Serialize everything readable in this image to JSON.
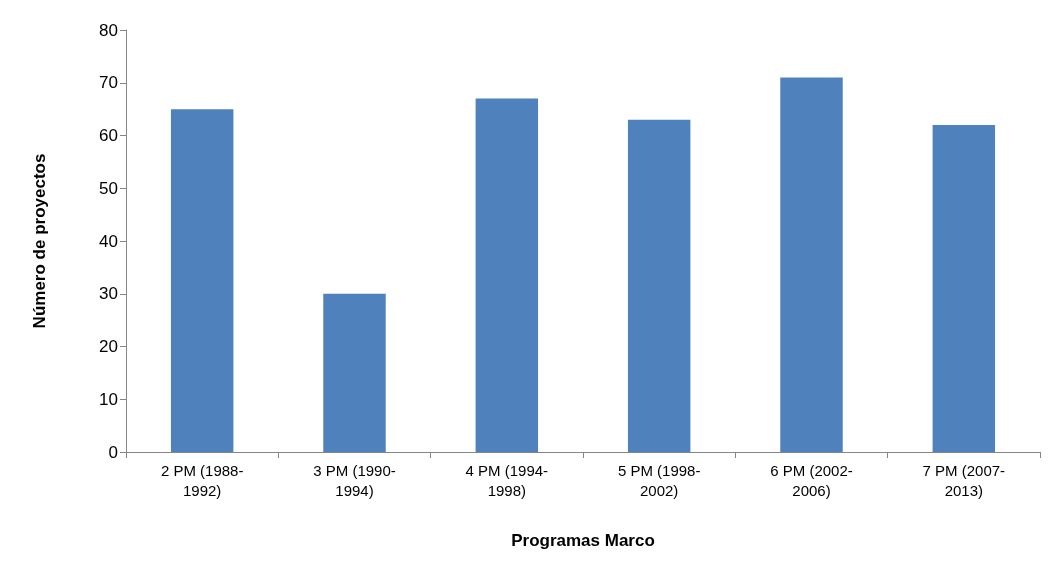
{
  "chart_data": {
    "type": "bar",
    "xlabel": "Programas Marco",
    "ylabel": "Número de proyectos",
    "categories": [
      "2 PM (1988-1992)",
      "3 PM (1990-1994)",
      "4 PM (1994-1998)",
      "5 PM (1998-2002)",
      "6 PM (2002-2006)",
      "7 PM (2007-2013)"
    ],
    "values": [
      65,
      30,
      67,
      63,
      71,
      62
    ],
    "color": "#4f81bd",
    "ylim": [
      0,
      80
    ],
    "yticks": [
      0,
      10,
      20,
      30,
      40,
      50,
      60,
      70,
      80
    ]
  }
}
